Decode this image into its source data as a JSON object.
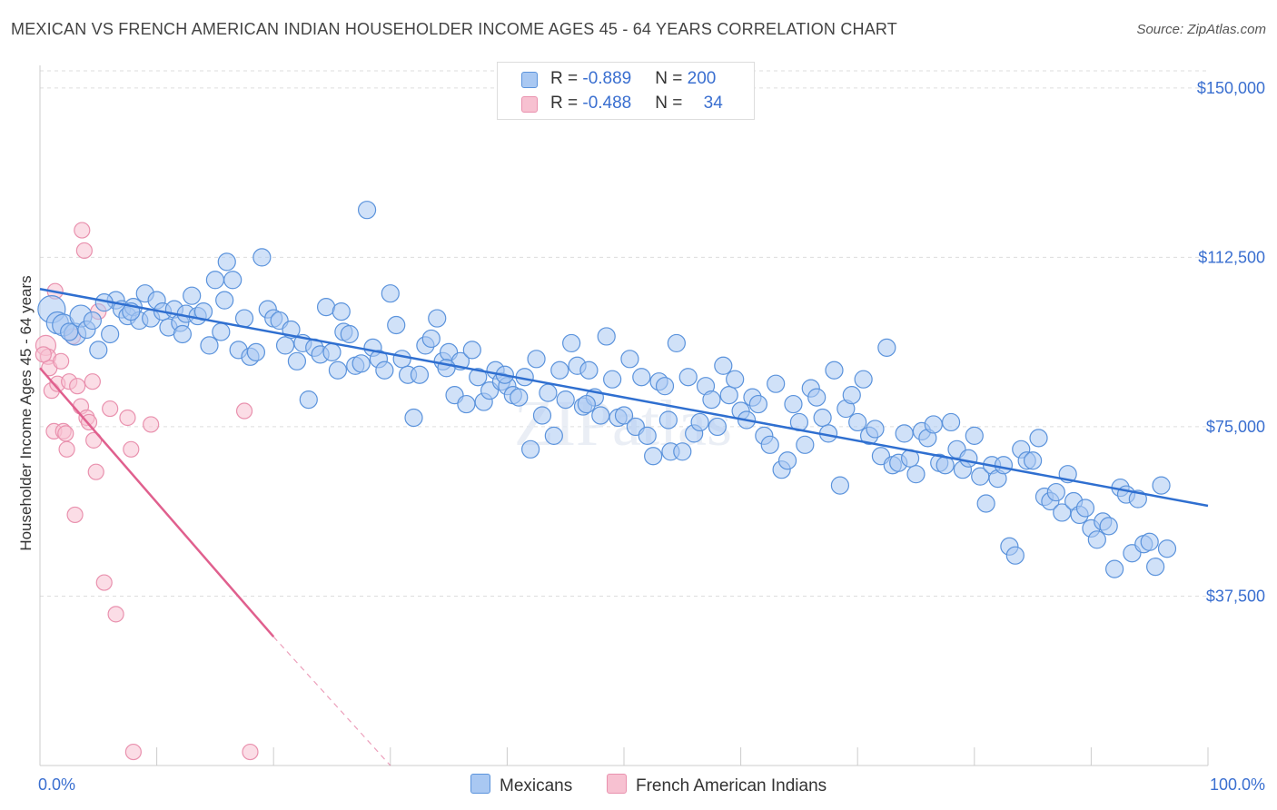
{
  "title": "MEXICAN VS FRENCH AMERICAN INDIAN HOUSEHOLDER INCOME AGES 45 - 64 YEARS CORRELATION CHART",
  "source": "Source: ZipAtlas.com",
  "watermark": "ZIPatlas",
  "colors": {
    "mexicans_fill": "#a9c8f2",
    "mexicans_stroke": "#5b93dc",
    "mexicans_line": "#2f6fd0",
    "french_fill": "#f7c1d1",
    "french_stroke": "#e991ae",
    "french_line": "#e0608e",
    "grid": "#dddddd",
    "tick_label": "#3a6fd0"
  },
  "legend": {
    "mexicans": {
      "r_label": "R = ",
      "r_value": "-0.889",
      "n_label": "N = ",
      "n_value": "200"
    },
    "french": {
      "r_label": "R = ",
      "r_value": "-0.488",
      "n_label": "N = ",
      "n_value": "34"
    }
  },
  "chart_data": {
    "type": "scatter",
    "title": "MEXICAN VS FRENCH AMERICAN INDIAN HOUSEHOLDER INCOME AGES 45 - 64 YEARS CORRELATION CHART",
    "xlabel": "",
    "ylabel": "Householder Income Ages 45 - 64 years",
    "xlim": [
      0,
      100
    ],
    "ylim": [
      0,
      155000
    ],
    "x_tick_labels": [
      "0.0%",
      "100.0%"
    ],
    "y_ticks": [
      37500,
      75000,
      112500,
      150000
    ],
    "y_tick_labels": [
      "$37,500",
      "$75,000",
      "$112,500",
      "$150,000"
    ],
    "grid": true,
    "legend_position": "top-center",
    "series": [
      {
        "name": "Mexicans",
        "r": -0.889,
        "n": 200,
        "trend": {
          "x": [
            0,
            100
          ],
          "y": [
            105500,
            57500
          ]
        },
        "points": [
          [
            1.0,
            101000
          ],
          [
            1.5,
            98000
          ],
          [
            2.0,
            97500
          ],
          [
            3.0,
            95500
          ],
          [
            3.5,
            99500
          ],
          [
            4.0,
            96500
          ],
          [
            5.0,
            92000
          ],
          [
            4.5,
            98500
          ],
          [
            6.0,
            95500
          ],
          [
            6.5,
            103000
          ],
          [
            7.0,
            101000
          ],
          [
            7.5,
            99500
          ],
          [
            8.0,
            101500
          ],
          [
            8.5,
            98500
          ],
          [
            9.0,
            104500
          ],
          [
            9.5,
            99000
          ],
          [
            10.0,
            103000
          ],
          [
            10.5,
            100500
          ],
          [
            11.0,
            97000
          ],
          [
            11.5,
            101000
          ],
          [
            12.0,
            98000
          ],
          [
            12.5,
            100000
          ],
          [
            13.0,
            104000
          ],
          [
            13.5,
            99500
          ],
          [
            14.0,
            100500
          ],
          [
            14.5,
            93000
          ],
          [
            15.0,
            107500
          ],
          [
            15.5,
            96000
          ],
          [
            16.0,
            111500
          ],
          [
            16.5,
            107500
          ],
          [
            17.0,
            92000
          ],
          [
            17.5,
            99000
          ],
          [
            18.0,
            90500
          ],
          [
            18.5,
            91500
          ],
          [
            19.0,
            112500
          ],
          [
            19.5,
            101000
          ],
          [
            20.0,
            99000
          ],
          [
            20.5,
            98500
          ],
          [
            21.0,
            93000
          ],
          [
            21.5,
            96500
          ],
          [
            22.0,
            89500
          ],
          [
            22.5,
            93500
          ],
          [
            23.0,
            81000
          ],
          [
            23.5,
            92500
          ],
          [
            24.0,
            91000
          ],
          [
            24.5,
            101500
          ],
          [
            25.0,
            91500
          ],
          [
            25.5,
            87500
          ],
          [
            26.0,
            96000
          ],
          [
            26.5,
            95500
          ],
          [
            27.0,
            88500
          ],
          [
            27.5,
            89000
          ],
          [
            28.0,
            123000
          ],
          [
            28.5,
            92500
          ],
          [
            29.0,
            90000
          ],
          [
            29.5,
            87500
          ],
          [
            30.0,
            104500
          ],
          [
            30.5,
            97500
          ],
          [
            31.0,
            90000
          ],
          [
            31.5,
            86500
          ],
          [
            32.0,
            77000
          ],
          [
            32.5,
            86500
          ],
          [
            33.0,
            93000
          ],
          [
            33.5,
            94500
          ],
          [
            34.0,
            99000
          ],
          [
            34.5,
            89500
          ],
          [
            35.0,
            91500
          ],
          [
            35.5,
            82000
          ],
          [
            36.0,
            89500
          ],
          [
            36.5,
            80000
          ],
          [
            37.0,
            92000
          ],
          [
            37.5,
            86000
          ],
          [
            38.0,
            80500
          ],
          [
            38.5,
            83000
          ],
          [
            39.0,
            87500
          ],
          [
            39.5,
            85000
          ],
          [
            40.0,
            84000
          ],
          [
            40.5,
            82000
          ],
          [
            41.0,
            81500
          ],
          [
            41.5,
            86000
          ],
          [
            42.0,
            70000
          ],
          [
            42.5,
            90000
          ],
          [
            43.0,
            77500
          ],
          [
            43.5,
            82500
          ],
          [
            44.0,
            73000
          ],
          [
            44.5,
            87500
          ],
          [
            45.0,
            81000
          ],
          [
            45.5,
            93500
          ],
          [
            46.0,
            88500
          ],
          [
            46.5,
            79500
          ],
          [
            47.0,
            87500
          ],
          [
            47.5,
            81500
          ],
          [
            48.0,
            77500
          ],
          [
            48.5,
            95000
          ],
          [
            49.0,
            85500
          ],
          [
            49.5,
            77000
          ],
          [
            50.0,
            77500
          ],
          [
            50.5,
            90000
          ],
          [
            51.0,
            75000
          ],
          [
            51.5,
            86000
          ],
          [
            52.0,
            73000
          ],
          [
            52.5,
            68500
          ],
          [
            53.0,
            85000
          ],
          [
            53.5,
            84000
          ],
          [
            54.0,
            69500
          ],
          [
            54.5,
            93500
          ],
          [
            55.0,
            69500
          ],
          [
            55.5,
            86000
          ],
          [
            56.0,
            73500
          ],
          [
            56.5,
            76000
          ],
          [
            57.0,
            84000
          ],
          [
            57.5,
            81000
          ],
          [
            58.0,
            75000
          ],
          [
            58.5,
            88500
          ],
          [
            59.0,
            82000
          ],
          [
            59.5,
            85500
          ],
          [
            60.0,
            78500
          ],
          [
            60.5,
            76500
          ],
          [
            61.0,
            81500
          ],
          [
            61.5,
            80000
          ],
          [
            62.0,
            73000
          ],
          [
            62.5,
            71000
          ],
          [
            63.0,
            84500
          ],
          [
            63.5,
            65500
          ],
          [
            64.0,
            67500
          ],
          [
            64.5,
            80000
          ],
          [
            65.0,
            76000
          ],
          [
            65.5,
            71000
          ],
          [
            66.0,
            83500
          ],
          [
            66.5,
            81500
          ],
          [
            67.0,
            77000
          ],
          [
            67.5,
            73500
          ],
          [
            68.0,
            87500
          ],
          [
            68.5,
            62000
          ],
          [
            69.0,
            79000
          ],
          [
            69.5,
            82000
          ],
          [
            70.0,
            76000
          ],
          [
            70.5,
            85500
          ],
          [
            71.0,
            73000
          ],
          [
            71.5,
            74500
          ],
          [
            72.0,
            68500
          ],
          [
            72.5,
            92500
          ],
          [
            73.0,
            66500
          ],
          [
            73.5,
            67000
          ],
          [
            74.0,
            73500
          ],
          [
            74.5,
            68000
          ],
          [
            75.0,
            64500
          ],
          [
            75.5,
            74000
          ],
          [
            76.0,
            72500
          ],
          [
            76.5,
            75500
          ],
          [
            77.0,
            67000
          ],
          [
            77.5,
            66500
          ],
          [
            78.0,
            76000
          ],
          [
            78.5,
            70000
          ],
          [
            79.0,
            65500
          ],
          [
            79.5,
            68000
          ],
          [
            80.0,
            73000
          ],
          [
            80.5,
            64000
          ],
          [
            81.0,
            58000
          ],
          [
            81.5,
            66500
          ],
          [
            82.0,
            63500
          ],
          [
            82.5,
            66500
          ],
          [
            83.0,
            48500
          ],
          [
            83.5,
            46500
          ],
          [
            84.0,
            70000
          ],
          [
            84.5,
            67500
          ],
          [
            85.0,
            67500
          ],
          [
            85.5,
            72500
          ],
          [
            86.0,
            59500
          ],
          [
            86.5,
            58500
          ],
          [
            87.0,
            60500
          ],
          [
            87.5,
            56000
          ],
          [
            88.0,
            64500
          ],
          [
            88.5,
            58500
          ],
          [
            89.0,
            55500
          ],
          [
            89.5,
            57000
          ],
          [
            90.0,
            52500
          ],
          [
            90.5,
            50000
          ],
          [
            91.0,
            54000
          ],
          [
            91.5,
            53000
          ],
          [
            92.0,
            43500
          ],
          [
            92.5,
            61500
          ],
          [
            93.0,
            60000
          ],
          [
            93.5,
            47000
          ],
          [
            94.0,
            59000
          ],
          [
            94.5,
            49000
          ],
          [
            95.0,
            49500
          ],
          [
            95.5,
            44000
          ],
          [
            96.0,
            62000
          ],
          [
            96.5,
            48000
          ],
          [
            2.5,
            96000
          ],
          [
            5.5,
            102500
          ],
          [
            7.8,
            100500
          ],
          [
            12.2,
            95500
          ],
          [
            15.8,
            103000
          ],
          [
            25.8,
            100500
          ],
          [
            34.8,
            88000
          ],
          [
            39.8,
            86500
          ],
          [
            46.8,
            80000
          ],
          [
            53.8,
            76500
          ]
        ]
      },
      {
        "name": "French American Indians",
        "r": -0.488,
        "n": 34,
        "trend": {
          "x": [
            0,
            20
          ],
          "y": [
            88000,
            28500
          ]
        },
        "trend_dashed": {
          "x": [
            20,
            30
          ],
          "y": [
            28500,
            0
          ]
        },
        "points": [
          [
            0.5,
            93000
          ],
          [
            0.7,
            90500
          ],
          [
            0.8,
            88000
          ],
          [
            1.0,
            83000
          ],
          [
            1.2,
            74000
          ],
          [
            1.3,
            105000
          ],
          [
            1.5,
            84500
          ],
          [
            1.8,
            89500
          ],
          [
            2.0,
            74000
          ],
          [
            2.2,
            73500
          ],
          [
            2.3,
            70000
          ],
          [
            2.5,
            85000
          ],
          [
            2.8,
            95000
          ],
          [
            3.0,
            55500
          ],
          [
            3.2,
            84000
          ],
          [
            3.5,
            79500
          ],
          [
            3.6,
            118500
          ],
          [
            3.8,
            114000
          ],
          [
            4.0,
            77000
          ],
          [
            4.2,
            76000
          ],
          [
            4.5,
            85000
          ],
          [
            4.6,
            72000
          ],
          [
            4.8,
            65000
          ],
          [
            5.0,
            100500
          ],
          [
            5.5,
            40500
          ],
          [
            6.0,
            79000
          ],
          [
            6.5,
            33500
          ],
          [
            7.5,
            77000
          ],
          [
            7.8,
            70000
          ],
          [
            8.0,
            3000
          ],
          [
            9.5,
            75500
          ],
          [
            17.5,
            78500
          ],
          [
            18.0,
            3000
          ],
          [
            0.3,
            91000
          ]
        ]
      }
    ]
  }
}
